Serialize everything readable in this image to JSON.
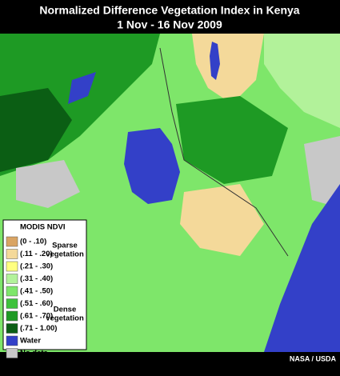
{
  "title": {
    "line1": "Normalized Difference Vegetation Index in Kenya",
    "line2": "1 Nov - 16 Nov 2009"
  },
  "legend": {
    "title": "MODIS NDVI",
    "items": [
      {
        "label": "(0 - .10)",
        "color": "#d9a463"
      },
      {
        "label": "(.11 - .20)",
        "color": "#f4d99a"
      },
      {
        "label": "(.21 - .30)",
        "color": "#ffff80"
      },
      {
        "label": "(.31 - .40)",
        "color": "#b2f29a"
      },
      {
        "label": "(.41 - .50)",
        "color": "#7ee66a"
      },
      {
        "label": "(.51 - .60)",
        "color": "#3dc23a"
      },
      {
        "label": "(.61 - .70)",
        "color": "#1e9a24"
      },
      {
        "label": "(.71 - 1.00)",
        "color": "#0b5e14"
      },
      {
        "label": "Water",
        "color": "#3340c8"
      },
      {
        "label": "No data",
        "color": "#c8c8c8"
      }
    ],
    "sparse_label": [
      "Sparse",
      "vegetation"
    ],
    "dense_label": [
      "Dense",
      "vegetation"
    ]
  },
  "credit": "NASA / USDA"
}
